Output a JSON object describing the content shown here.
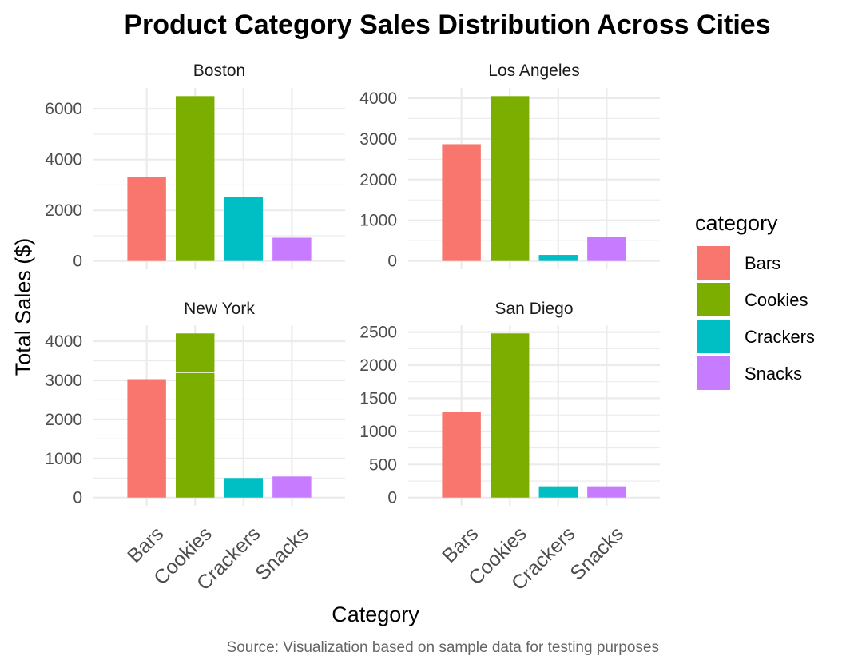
{
  "chart_data": {
    "type": "bar",
    "title": "Product Category Sales Distribution Across Cities",
    "xlabel": "Category",
    "ylabel": "Total Sales ($)",
    "caption": "Source: Visualization based on sample data for testing purposes",
    "categories": [
      "Bars",
      "Cookies",
      "Crackers",
      "Snacks"
    ],
    "legend": {
      "title": "category",
      "position": "right",
      "entries": [
        "Bars",
        "Cookies",
        "Crackers",
        "Snacks"
      ]
    },
    "colors": {
      "Bars": "#F8766D",
      "Cookies": "#7CAE00",
      "Crackers": "#00BFC4",
      "Snacks": "#C77CFF"
    },
    "grid": true,
    "facets": [
      {
        "name": "Boston",
        "values": [
          3320,
          6500,
          2530,
          920
        ],
        "ylim": [
          0,
          6500
        ],
        "yticks": [
          0,
          2000,
          4000,
          6000
        ],
        "ytick_labels": [
          "0",
          "2000",
          "4000",
          "6000"
        ]
      },
      {
        "name": "Los Angeles",
        "values": [
          2870,
          4050,
          150,
          600
        ],
        "ylim": [
          0,
          4050
        ],
        "yticks": [
          0,
          1000,
          2000,
          3000,
          4000
        ],
        "ytick_labels": [
          "0",
          "1000",
          "2000",
          "3000",
          "4000"
        ]
      },
      {
        "name": "New York",
        "values": [
          3030,
          4200,
          500,
          540
        ],
        "stacked_split": {
          "Cookies": 3200
        },
        "ylim": [
          0,
          4200
        ],
        "yticks": [
          0,
          1000,
          2000,
          3000,
          4000
        ],
        "ytick_labels": [
          "0",
          "1000",
          "2000",
          "3000",
          "4000"
        ]
      },
      {
        "name": "San Diego",
        "values": [
          1300,
          2480,
          170,
          170
        ],
        "ylim": [
          0,
          2480
        ],
        "yticks": [
          0,
          500,
          1000,
          1500,
          2000,
          2500
        ],
        "ytick_labels": [
          "0",
          "500",
          "1000",
          "1500",
          "2000",
          "2500"
        ]
      }
    ]
  }
}
